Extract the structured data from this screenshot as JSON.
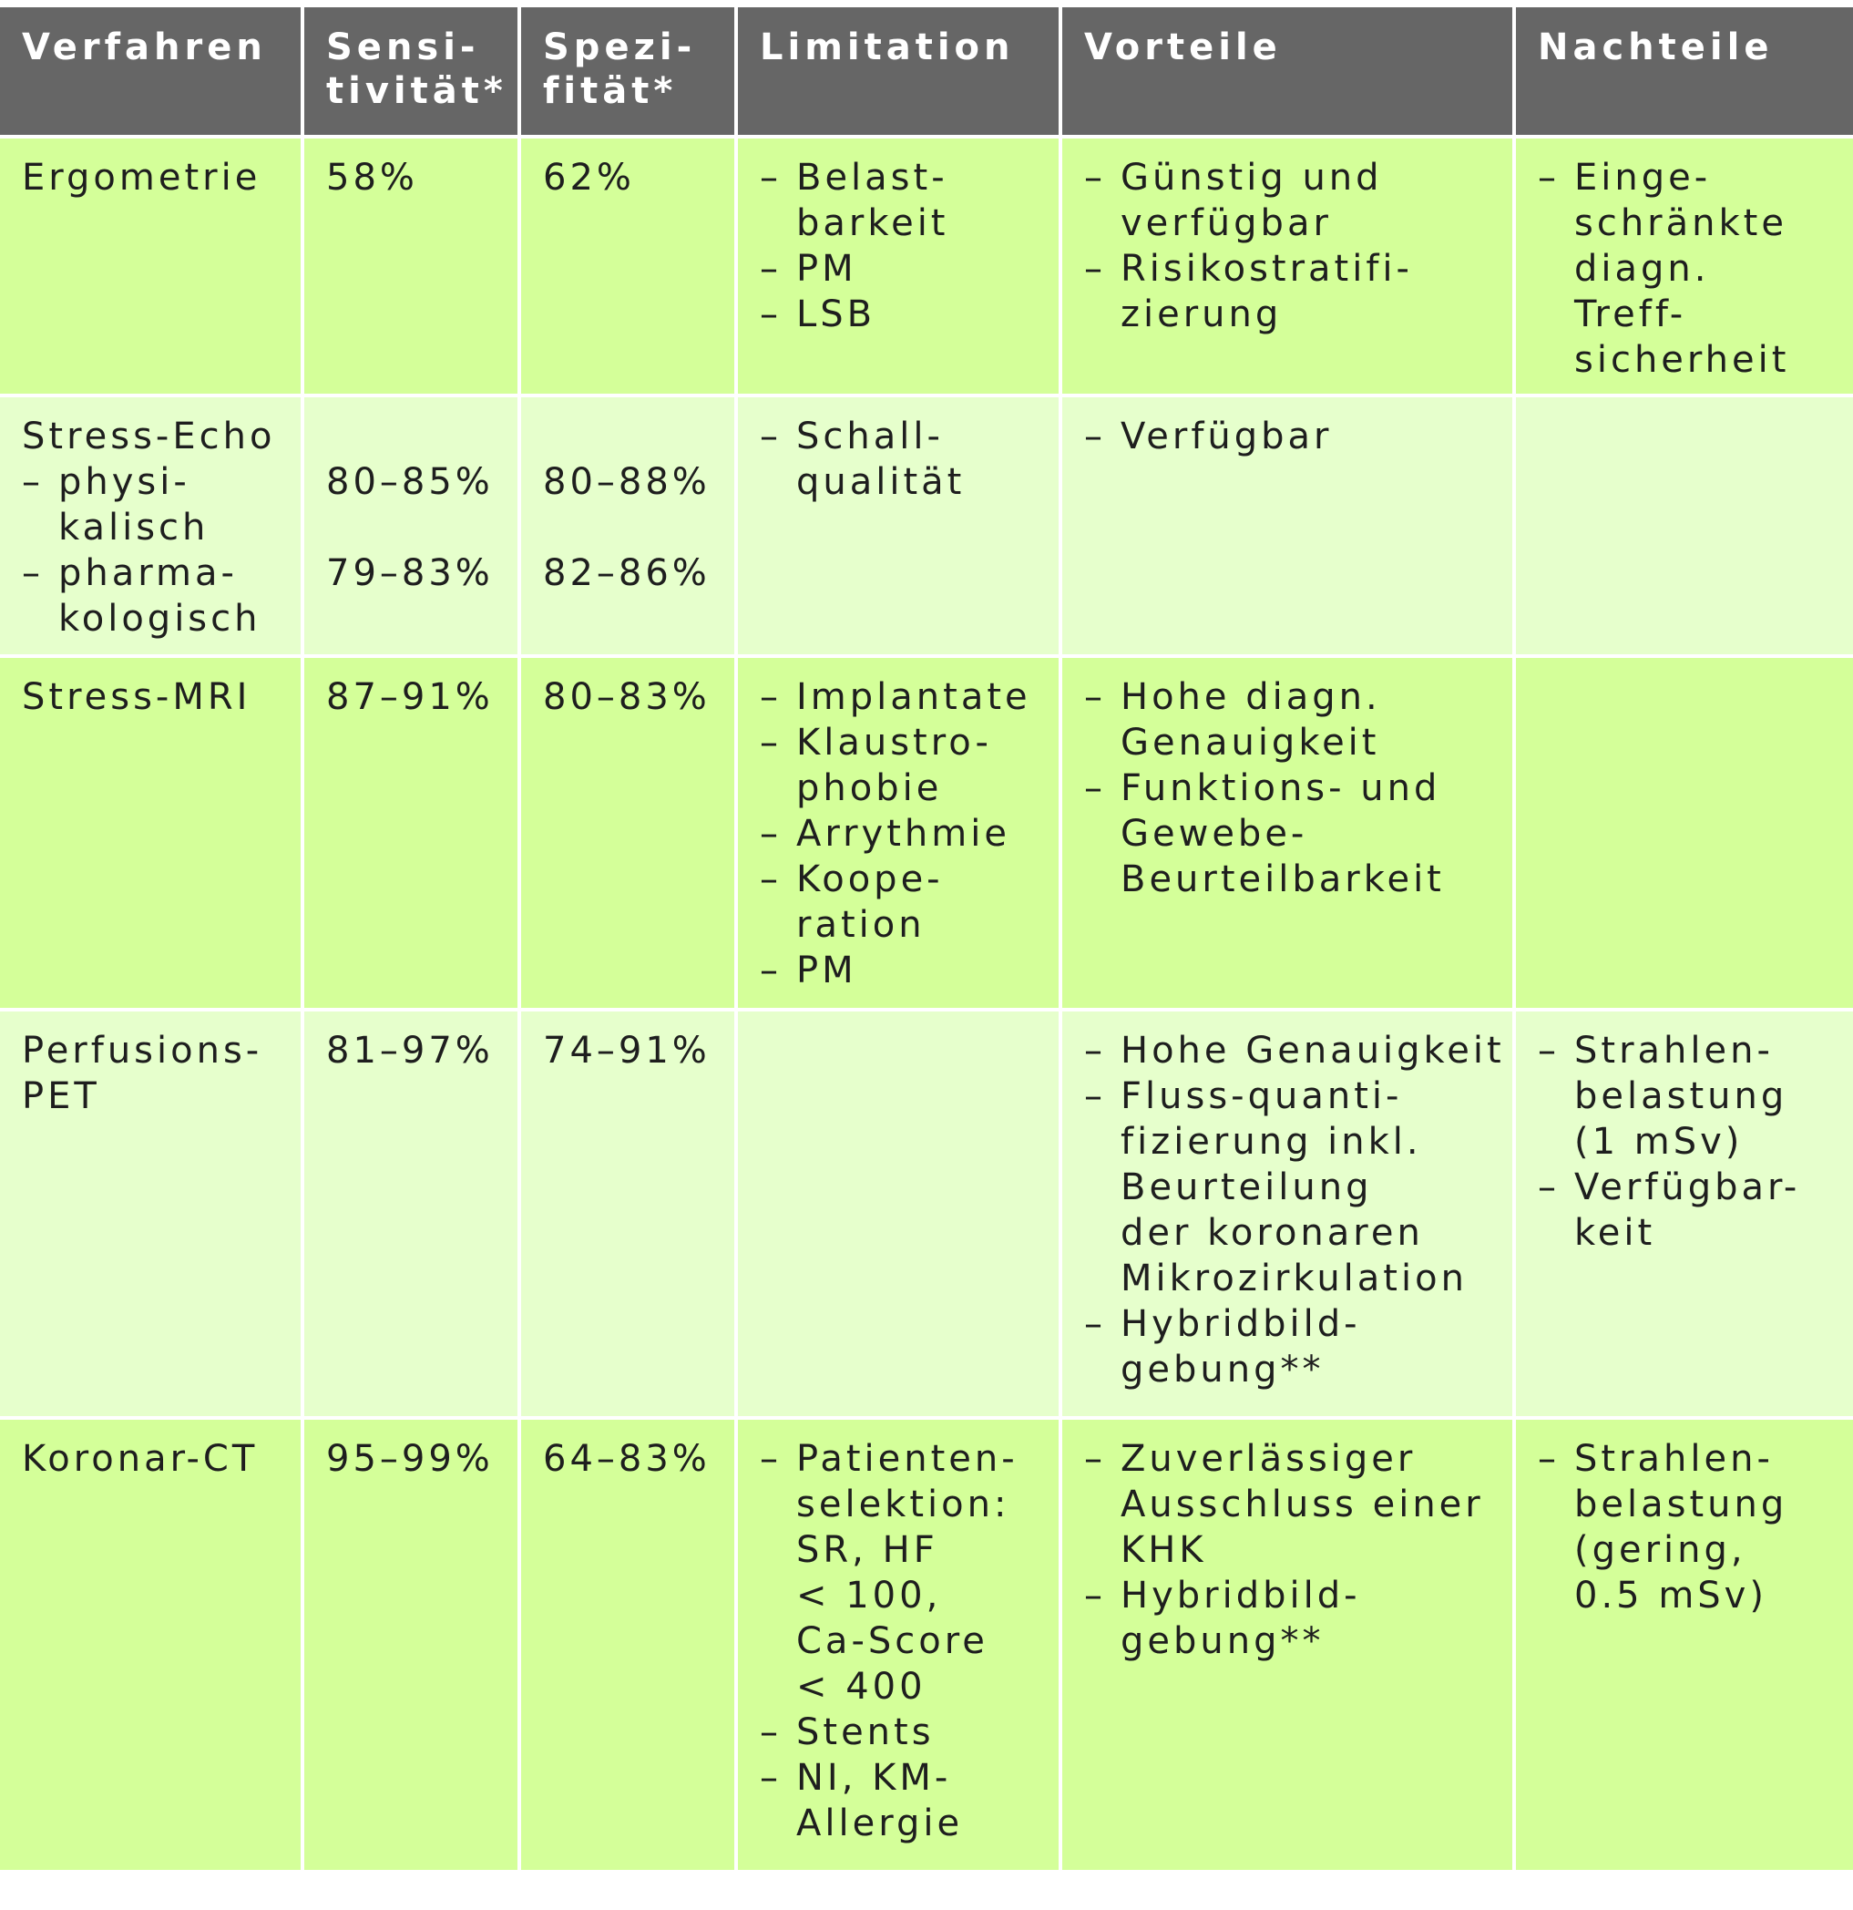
{
  "headers": [
    "Verfahren",
    "Sensi-\ntivität*",
    "Spezi-\nfität*",
    "Limitation",
    "Vorteile",
    "Nachteile"
  ],
  "rows": [
    {
      "verfahren": "Ergometrie",
      "sens": "58%",
      "spez": "62%",
      "limitation": [
        "Belast-\nbarkeit",
        "PM",
        "LSB"
      ],
      "vorteile": [
        "Günstig und\nverfügbar",
        "Risikostratifi-\nzierung"
      ],
      "nachteile": [
        "Einge-\nschränkte\ndiagn.\nTreff-\nsicherheit"
      ]
    },
    {
      "verfahren": "Stress-Echo",
      "sub": [
        "physi-\nkalisch",
        "pharma-\nkologisch"
      ],
      "sens": [
        "80–85%",
        "79–83%"
      ],
      "spez": [
        "80–88%",
        "82–86%"
      ],
      "limitation": [
        "Schall-\nqualität"
      ],
      "vorteile": [
        "Verfügbar"
      ],
      "nachteile": []
    },
    {
      "verfahren": "Stress-MRI",
      "sens": "87–91%",
      "spez": "80–83%",
      "limitation": [
        "Implantate",
        "Klaustro-\nphobie",
        "Arrythmie",
        "Koope-\nration",
        "PM"
      ],
      "vorteile": [
        "Hohe diagn.\nGenauigkeit",
        "Funktions- und\nGewebe-\nBeurteilbarkeit"
      ],
      "nachteile": []
    },
    {
      "verfahren": "Perfusions-\nPET",
      "sens": "81–97%",
      "spez": "74–91%",
      "limitation": [],
      "vorteile": [
        "Hohe Genauigkeit",
        "Fluss-quanti-\nfizierung inkl.\nBeurteilung\nder koronaren\nMikrozirkulation",
        "Hybridbild-\ngebung**"
      ],
      "nachteile": [
        "Strahlen-\nbelastung\n(1 mSv)",
        "Verfügbar-\nkeit"
      ]
    },
    {
      "verfahren": "Koronar-CT",
      "sens": "95–99%",
      "spez": "64–83%",
      "limitation": [
        "Patienten-\nselektion:\nSR, HF\n< 100,\nCa-Score\n< 400",
        "Stents",
        "NI, KM-\nAllergie"
      ],
      "vorteile": [
        "Zuverlässiger\nAusschluss einer\nKHK",
        "Hybridbild-\ngebung**"
      ],
      "nachteile": [
        "Strahlen-\nbelastung\n(gering,\n0.5 mSv)"
      ]
    }
  ],
  "dash": "–",
  "colors": {
    "header": "#666666",
    "row_dark": "#d4ff99",
    "row_light": "#e6ffcc",
    "grid": "#ffffff"
  }
}
